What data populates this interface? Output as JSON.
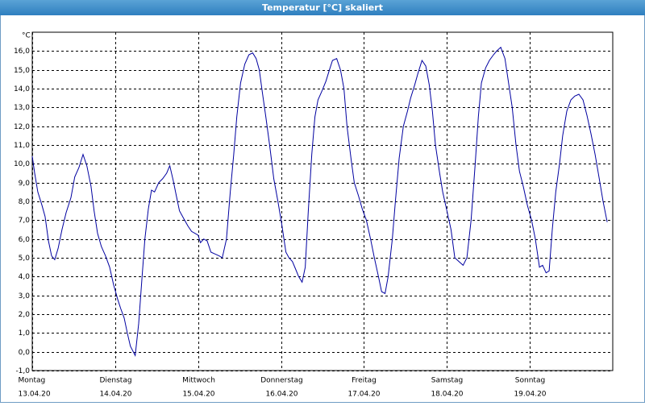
{
  "window_title": "Temperatur [°C] skaliert",
  "chart_data": {
    "type": "line",
    "ylabel": "°C",
    "xlim": [
      0,
      168
    ],
    "xticks": [
      {
        "value": 0,
        "label": "Montag"
      },
      {
        "value": 24,
        "label": "Dienstag"
      },
      {
        "value": 48,
        "label": "Mittwoch"
      },
      {
        "value": 72,
        "label": "Donnerstag"
      },
      {
        "value": 96,
        "label": "Freitag"
      },
      {
        "value": 120,
        "label": "Samstag"
      },
      {
        "value": 144,
        "label": "Sonntag"
      }
    ],
    "xtick_dates": [
      "13.04.20",
      "14.04.20",
      "15.04.20",
      "16.04.20",
      "17.04.20",
      "18.04.20",
      "19.04.20"
    ],
    "ylim": [
      -1,
      17
    ],
    "yticks": [
      {
        "value": -1,
        "label": "-1,0"
      },
      {
        "value": 0,
        "label": "0,0"
      },
      {
        "value": 1,
        "label": "1,0"
      },
      {
        "value": 2,
        "label": "2,0"
      },
      {
        "value": 3,
        "label": "3,0"
      },
      {
        "value": 4,
        "label": "4,0"
      },
      {
        "value": 5,
        "label": "5,0"
      },
      {
        "value": 6,
        "label": "6,0"
      },
      {
        "value": 7,
        "label": "7,0"
      },
      {
        "value": 8,
        "label": "8,0"
      },
      {
        "value": 9,
        "label": "9,0"
      },
      {
        "value": 10,
        "label": "10,0"
      },
      {
        "value": 11,
        "label": "11,0"
      },
      {
        "value": 12,
        "label": "12,0"
      },
      {
        "value": 13,
        "label": "13,0"
      },
      {
        "value": 14,
        "label": "14,0"
      },
      {
        "value": 15,
        "label": "15,0"
      },
      {
        "value": 16,
        "label": "16,0"
      }
    ],
    "grid": true,
    "x": [
      0,
      0.7,
      1.6,
      2.8,
      3.7,
      4.7,
      5.6,
      6.5,
      7.5,
      8.6,
      9.8,
      11.2,
      12.3,
      13.5,
      14.7,
      15.8,
      17.0,
      17.9,
      18.9,
      20.0,
      21.2,
      22.4,
      23.5,
      24.7,
      25.6,
      26.6,
      27.5,
      28.4,
      29.8,
      30.8,
      31.7,
      32.6,
      33.6,
      34.5,
      35.4,
      36.6,
      37.7,
      38.9,
      39.8,
      40.8,
      41.7,
      42.6,
      43.8,
      45.0,
      46.1,
      47.1,
      48.0,
      48.7,
      49.6,
      50.6,
      51.7,
      52.9,
      54.1,
      55.0,
      56.2,
      57.3,
      58.3,
      59.2,
      60.3,
      61.5,
      62.7,
      63.8,
      64.8,
      65.7,
      66.6,
      67.6,
      68.7,
      69.9,
      71.1,
      72.2,
      73.4,
      74.3,
      75.3,
      76.2,
      77.1,
      78.1,
      79.0,
      79.9,
      80.9,
      81.8,
      82.7,
      83.9,
      85.0,
      86.0,
      86.9,
      88.1,
      89.2,
      90.2,
      91.1,
      92.3,
      93.2,
      94.4,
      95.5,
      96.7,
      97.9,
      99.0,
      100.2,
      101.1,
      102.1,
      103.0,
      104.2,
      105.1,
      106.2,
      107.4,
      108.6,
      109.5,
      110.7,
      111.6,
      112.8,
      113.9,
      114.9,
      115.8,
      116.7,
      117.9,
      118.8,
      120.0,
      121.2,
      122.3,
      123.5,
      124.7,
      125.8,
      127.0,
      128.2,
      129.1,
      130.0,
      131.2,
      132.3,
      133.5,
      134.4,
      135.6,
      136.8,
      137.7,
      138.9,
      140.0,
      141.0,
      142.1,
      143.3,
      144.5,
      145.6,
      146.8,
      147.7,
      148.7,
      149.6,
      150.5,
      151.5,
      152.6,
      153.5,
      154.7,
      155.9,
      157.0,
      158.2,
      159.4,
      160.5,
      161.7,
      162.9,
      164.0,
      165.2,
      166.4
    ],
    "series": [
      {
        "color": "#0000a0",
        "values": [
          10.4,
          9.5,
          8.5,
          7.8,
          7.2,
          5.9,
          5.1,
          4.9,
          5.5,
          6.5,
          7.4,
          8.2,
          9.3,
          9.8,
          10.5,
          9.9,
          8.8,
          7.5,
          6.3,
          5.6,
          5.1,
          4.5,
          3.6,
          2.8,
          2.3,
          1.8,
          1.0,
          0.3,
          -0.2,
          1.5,
          3.8,
          6.0,
          7.6,
          8.6,
          8.5,
          9.0,
          9.2,
          9.5,
          9.9,
          9.1,
          8.3,
          7.5,
          7.1,
          6.7,
          6.4,
          6.3,
          6.2,
          5.8,
          6.0,
          5.9,
          5.3,
          5.2,
          5.1,
          5.0,
          6.0,
          8.5,
          10.5,
          12.5,
          14.3,
          15.3,
          15.8,
          15.9,
          15.6,
          15.0,
          13.8,
          12.5,
          11.0,
          9.2,
          8.0,
          6.8,
          5.3,
          5.0,
          4.8,
          4.4,
          4.0,
          3.7,
          4.5,
          7.5,
          10.5,
          12.5,
          13.4,
          13.9,
          14.4,
          15.0,
          15.5,
          15.6,
          15.0,
          14.0,
          12.0,
          10.2,
          9.0,
          8.3,
          7.6,
          7.0,
          6.0,
          5.0,
          4.0,
          3.2,
          3.1,
          4.0,
          6.0,
          8.0,
          10.3,
          12.0,
          12.8,
          13.5,
          14.2,
          14.8,
          15.5,
          15.2,
          14.2,
          12.8,
          11.0,
          9.5,
          8.5,
          7.5,
          6.5,
          5.0,
          4.8,
          4.6,
          5.0,
          7.0,
          10.0,
          12.5,
          14.3,
          15.1,
          15.5,
          15.8,
          16.0,
          16.2,
          15.6,
          14.5,
          13.0,
          11.0,
          9.6,
          8.8,
          7.8,
          7.0,
          6.0,
          4.5,
          4.6,
          4.2,
          4.3,
          6.5,
          8.5,
          10.0,
          11.5,
          12.8,
          13.4,
          13.6,
          13.7,
          13.4,
          12.6,
          11.6,
          10.5,
          9.3,
          8.0,
          6.9
        ]
      }
    ]
  }
}
